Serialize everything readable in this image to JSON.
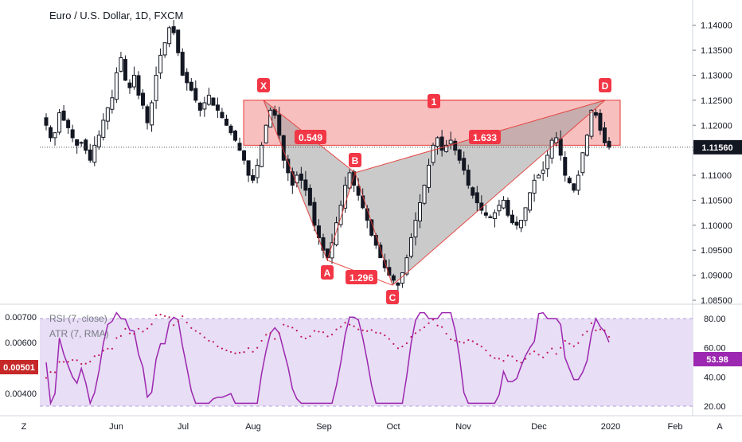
{
  "header": {
    "title": "Euro / U.S. Dollar, 1D, FXCM"
  },
  "price_axis": {
    "ticks": [
      "1.14000",
      "1.13500",
      "1.13000",
      "1.12500",
      "1.12000",
      "1.11500",
      "1.11000",
      "1.10500",
      "1.10000",
      "1.09500",
      "1.09000",
      "1.08500"
    ],
    "last_price_label": "1.11560"
  },
  "time_axis": {
    "labels": [
      "Jun",
      "Jul",
      "Aug",
      "Sep",
      "Oct",
      "Nov",
      "Dec",
      "2020",
      "Feb"
    ],
    "left_corner": "Z",
    "right_corner": "A"
  },
  "pattern": {
    "points": [
      {
        "label": "X",
        "price": 1.125
      },
      {
        "label": "A",
        "price": 1.093
      },
      {
        "label": "B",
        "price": 1.1105
      },
      {
        "label": "C",
        "price": 1.088
      },
      {
        "label": "D",
        "price": 1.125
      }
    ],
    "ratios": [
      "0.549",
      "1.296",
      "1.633",
      "1"
    ],
    "colors": {
      "triangle": "#9e9e9e",
      "zone": "#f5a9a9",
      "line": "#e53935",
      "label_bg": "#f23645"
    }
  },
  "indicators": {
    "rsi_legend": "RSI (7, close)",
    "atr_legend": "ATR (7, RMA)",
    "rsi_ticks": [
      "80.00",
      "60.00",
      "40.00",
      "20.00"
    ],
    "atr_ticks": [
      "0.00700",
      "0.00600",
      "0.00400"
    ],
    "rsi_value": "53.98",
    "atr_value": "0.00501",
    "colors": {
      "rsi": "#9c27b0",
      "atr": "#c2185b",
      "band": "#e1d5f0",
      "rsi_badge": "#9c27b0",
      "atr_badge": "#c62828"
    }
  },
  "chart_data": {
    "type": "candlestick",
    "symbol": "Euro / U.S. Dollar, 1D, FXCM",
    "price_range": [
      1.085,
      1.1425
    ],
    "last_price": 1.1156,
    "close_series": [
      1.12,
      1.1175,
      1.1185,
      1.1225,
      1.121,
      1.1195,
      1.1175,
      1.116,
      1.1165,
      1.115,
      1.113,
      1.116,
      1.118,
      1.121,
      1.1235,
      1.1255,
      1.1305,
      1.1335,
      1.129,
      1.1275,
      1.13,
      1.126,
      1.124,
      1.1205,
      1.1245,
      1.13,
      1.134,
      1.1365,
      1.1395,
      1.1385,
      1.1345,
      1.13,
      1.1285,
      1.127,
      1.125,
      1.123,
      1.1245,
      1.126,
      1.124,
      1.123,
      1.1215,
      1.12,
      1.1185,
      1.117,
      1.115,
      1.113,
      1.11,
      1.109,
      1.112,
      1.116,
      1.12,
      1.123,
      1.122,
      1.118,
      1.113,
      1.1105,
      1.108,
      1.11,
      1.109,
      1.107,
      1.104,
      1.1,
      1.0975,
      1.095,
      1.0935,
      1.0965,
      1.1005,
      1.104,
      1.108,
      1.1105,
      1.108,
      1.106,
      1.1035,
      1.101,
      1.098,
      1.096,
      1.0935,
      1.0915,
      1.09,
      1.089,
      1.088,
      1.0905,
      1.0935,
      1.0975,
      1.101,
      1.1045,
      1.108,
      1.112,
      1.116,
      1.1175,
      1.115,
      1.116,
      1.117,
      1.115,
      1.113,
      1.111,
      1.108,
      1.106,
      1.1045,
      1.103,
      1.102,
      1.1015,
      1.1025,
      1.104,
      1.105,
      1.102,
      1.1005,
      1.1,
      1.101,
      1.1035,
      1.1065,
      1.109,
      1.11,
      1.111,
      1.114,
      1.117,
      1.1175,
      1.114,
      1.11,
      1.1085,
      1.107,
      1.11,
      1.1145,
      1.118,
      1.123,
      1.122,
      1.119,
      1.1165,
      1.1156
    ],
    "rsi": {
      "name": "RSI (7, close)",
      "range": [
        20,
        80
      ],
      "last": 53.98
    },
    "atr": {
      "name": "ATR (7, RMA)",
      "last": 0.00501
    }
  }
}
